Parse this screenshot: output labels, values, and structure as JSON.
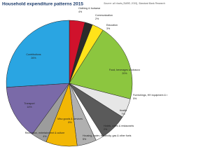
{
  "chart_data": {
    "type": "pie",
    "title": "Household expenditure patterns 2015",
    "source": "Source: all charts (SARB, 2015), Standard Bank Research",
    "categories": [
      "Clothing & footwear",
      "Communication",
      "Education",
      "Food, beverages & tobacco",
      "Furnishings, HH equipment & routine maintenance",
      "Health",
      "Hotels, cafes & restaurants",
      "Housing, water, electricity, gas & other fuels",
      "Misc goods & services",
      "Recreation, entertainment & culture",
      "Transport",
      "Contributions"
    ],
    "values": [
      4,
      2,
      3,
      20,
      5,
      7,
      2,
      5,
      8,
      4,
      14,
      26
    ],
    "value_labels": [
      "4%",
      "2%",
      "3%",
      "20%",
      "5%",
      "7%",
      "2%",
      "5%",
      "8%",
      "4%",
      "14%",
      "26%"
    ],
    "colors": [
      "#d0122c",
      "#2b2b2b",
      "#ffe31a",
      "#8cc63f",
      "#e6e6e6",
      "#5a5a5a",
      "#ffffff",
      "#b0b0b0",
      "#f2b705",
      "#9c9c9c",
      "#7a6aa8",
      "#2aa5e2"
    ]
  }
}
